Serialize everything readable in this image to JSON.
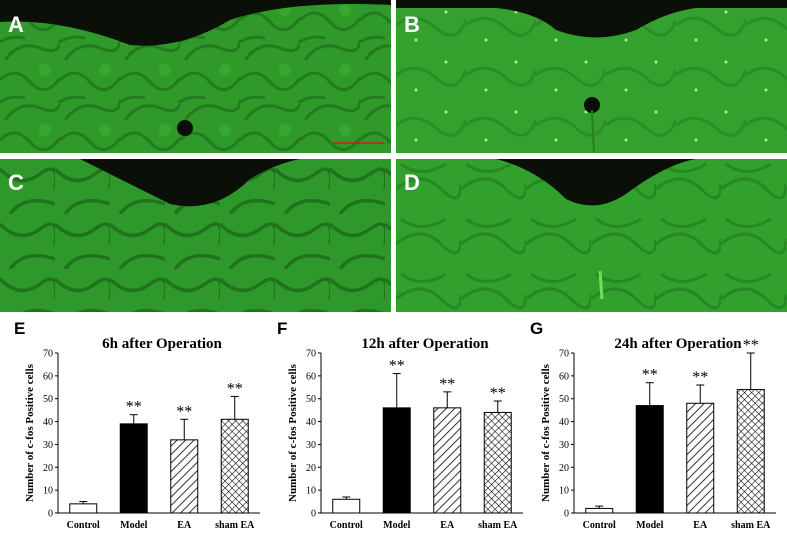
{
  "micrographs": [
    {
      "label": "A"
    },
    {
      "label": "B"
    },
    {
      "label": "C"
    },
    {
      "label": "D"
    }
  ],
  "colors": {
    "tissue": "#2f9a2a",
    "tissue_dark": "#1f6e1a",
    "background": "#0a0f08",
    "scale_bar": "#d01a1a",
    "model_bar": "#000000",
    "control_bar": "#ffffff"
  },
  "chart_data": [
    {
      "panel": "E",
      "type": "bar",
      "title": "6h after Operation",
      "ylabel": "Number of c-fos Positive cells",
      "xlabel": "",
      "ylim": [
        0,
        70
      ],
      "yticks": [
        0,
        10,
        20,
        30,
        40,
        50,
        60,
        70
      ],
      "categories": [
        "Control",
        "Model",
        "EA",
        "sham EA"
      ],
      "values": [
        4,
        39,
        32,
        41
      ],
      "errors": [
        1,
        4,
        9,
        10
      ],
      "significance": [
        "",
        "**",
        "**",
        "**"
      ],
      "patterns": [
        "white",
        "black",
        "diagonal",
        "crosshatch"
      ]
    },
    {
      "panel": "F",
      "type": "bar",
      "title": "12h after Operation",
      "ylabel": "Number of c-fos Positive cells",
      "xlabel": "",
      "ylim": [
        0,
        70
      ],
      "yticks": [
        0,
        10,
        20,
        30,
        40,
        50,
        60,
        70
      ],
      "categories": [
        "Control",
        "Model",
        "EA",
        "sham EA"
      ],
      "values": [
        6,
        46,
        46,
        44
      ],
      "errors": [
        1,
        15,
        7,
        5
      ],
      "significance": [
        "",
        "**",
        "**",
        "**"
      ],
      "patterns": [
        "white",
        "black",
        "diagonal",
        "crosshatch"
      ]
    },
    {
      "panel": "G",
      "type": "bar",
      "title": "24h after Operation",
      "ylabel": "Number of c-fos Positive cells",
      "xlabel": "",
      "ylim": [
        0,
        70
      ],
      "yticks": [
        0,
        10,
        20,
        30,
        40,
        50,
        60,
        70
      ],
      "categories": [
        "Control",
        "Model",
        "EA",
        "sham EA"
      ],
      "values": [
        2,
        47,
        48,
        54
      ],
      "errors": [
        1,
        10,
        8,
        16
      ],
      "significance": [
        "",
        "**",
        "**",
        "**"
      ],
      "patterns": [
        "white",
        "black",
        "diagonal",
        "crosshatch"
      ]
    }
  ]
}
